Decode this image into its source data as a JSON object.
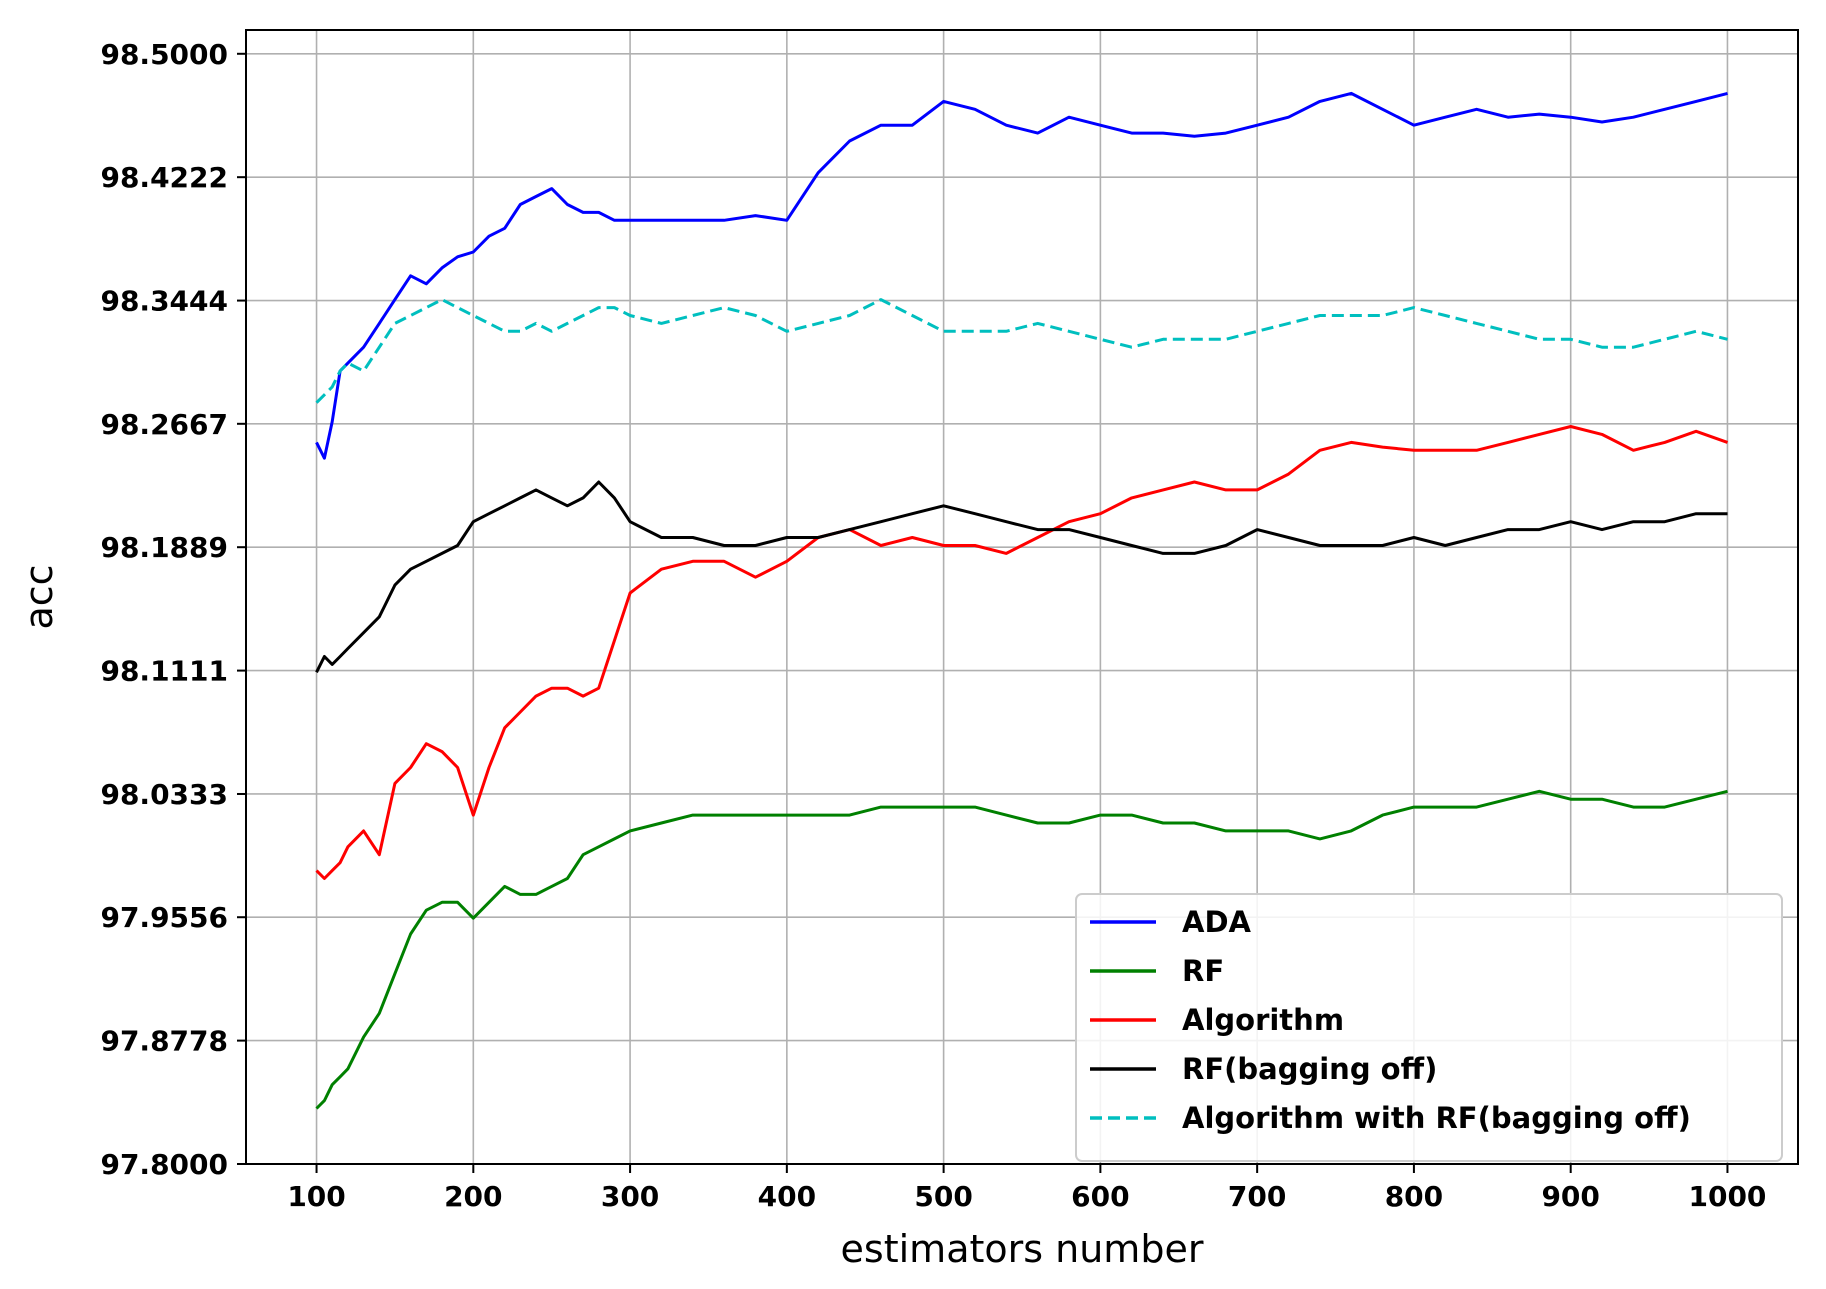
{
  "chart_data": {
    "type": "line",
    "title": "",
    "xlabel": "estimators number",
    "ylabel": "acc",
    "xlim": [
      55,
      1045
    ],
    "ylim": [
      97.8,
      98.515
    ],
    "xticks": [
      100,
      200,
      300,
      400,
      500,
      600,
      700,
      800,
      900,
      1000
    ],
    "xtick_labels": [
      "100",
      "200",
      "300",
      "400",
      "500",
      "600",
      "700",
      "800",
      "900",
      "1000"
    ],
    "yticks": [
      97.8,
      97.8778,
      97.9556,
      98.0333,
      98.1111,
      98.1889,
      98.2667,
      98.3444,
      98.4222,
      98.5
    ],
    "ytick_labels": [
      "97.8000",
      "97.8778",
      "97.9556",
      "98.0333",
      "98.1111",
      "98.1889",
      "98.2667",
      "98.3444",
      "98.4222",
      "98.5000"
    ],
    "grid": true,
    "legend_position": "lower-right",
    "x": [
      100,
      105,
      110,
      115,
      120,
      130,
      140,
      150,
      160,
      170,
      180,
      190,
      200,
      210,
      220,
      230,
      240,
      250,
      260,
      270,
      280,
      290,
      300,
      320,
      340,
      360,
      380,
      400,
      420,
      440,
      460,
      480,
      500,
      520,
      540,
      560,
      580,
      600,
      620,
      640,
      660,
      680,
      700,
      720,
      740,
      760,
      780,
      800,
      820,
      840,
      860,
      880,
      900,
      920,
      940,
      960,
      980,
      1000
    ],
    "series": [
      {
        "name": "ADA",
        "color": "#0000ff",
        "dash": "solid",
        "values": [
          98.255,
          98.245,
          98.268,
          98.3,
          98.305,
          98.315,
          98.33,
          98.345,
          98.36,
          98.355,
          98.365,
          98.372,
          98.375,
          98.385,
          98.39,
          98.405,
          98.41,
          98.415,
          98.405,
          98.4,
          98.4,
          98.395,
          98.395,
          98.395,
          98.395,
          98.395,
          98.398,
          98.395,
          98.425,
          98.445,
          98.455,
          98.455,
          98.47,
          98.465,
          98.455,
          98.45,
          98.46,
          98.455,
          98.45,
          98.45,
          98.448,
          98.45,
          98.455,
          98.46,
          98.47,
          98.475,
          98.465,
          98.455,
          98.46,
          98.465,
          98.46,
          98.462,
          98.46,
          98.457,
          98.46,
          98.465,
          98.47,
          98.475
        ]
      },
      {
        "name": "RF",
        "color": "#008000",
        "dash": "solid",
        "values": [
          97.835,
          97.84,
          97.85,
          97.855,
          97.86,
          97.88,
          97.895,
          97.92,
          97.945,
          97.96,
          97.965,
          97.965,
          97.955,
          97.965,
          97.975,
          97.97,
          97.97,
          97.975,
          97.98,
          97.995,
          98.0,
          98.005,
          98.01,
          98.015,
          98.02,
          98.02,
          98.02,
          98.02,
          98.02,
          98.02,
          98.025,
          98.025,
          98.025,
          98.025,
          98.02,
          98.015,
          98.015,
          98.02,
          98.02,
          98.015,
          98.015,
          98.01,
          98.01,
          98.01,
          98.005,
          98.01,
          98.02,
          98.025,
          98.025,
          98.025,
          98.03,
          98.035,
          98.03,
          98.03,
          98.025,
          98.025,
          98.03,
          98.035
        ]
      },
      {
        "name": "Algorithm",
        "color": "#ff0000",
        "dash": "solid",
        "values": [
          97.985,
          97.98,
          97.985,
          97.99,
          98.0,
          98.01,
          97.995,
          98.04,
          98.05,
          98.065,
          98.06,
          98.05,
          98.02,
          98.05,
          98.075,
          98.085,
          98.095,
          98.1,
          98.1,
          98.095,
          98.1,
          98.13,
          98.16,
          98.175,
          98.18,
          98.18,
          98.17,
          98.18,
          98.195,
          98.2,
          98.19,
          98.195,
          98.19,
          98.19,
          98.185,
          98.195,
          98.205,
          98.21,
          98.22,
          98.225,
          98.23,
          98.225,
          98.225,
          98.235,
          98.25,
          98.255,
          98.252,
          98.25,
          98.25,
          98.25,
          98.255,
          98.26,
          98.265,
          98.26,
          98.25,
          98.255,
          98.262,
          98.255
        ]
      },
      {
        "name": "RF(bagging off)",
        "color": "#000000",
        "dash": "solid",
        "values": [
          98.11,
          98.12,
          98.115,
          98.12,
          98.125,
          98.135,
          98.145,
          98.165,
          98.175,
          98.18,
          98.185,
          98.19,
          98.205,
          98.21,
          98.215,
          98.22,
          98.225,
          98.22,
          98.215,
          98.22,
          98.23,
          98.22,
          98.205,
          98.195,
          98.195,
          98.19,
          98.19,
          98.195,
          98.195,
          98.2,
          98.205,
          98.21,
          98.215,
          98.21,
          98.205,
          98.2,
          98.2,
          98.195,
          98.19,
          98.185,
          98.185,
          98.19,
          98.2,
          98.195,
          98.19,
          98.19,
          98.19,
          98.195,
          98.19,
          98.195,
          98.2,
          98.2,
          98.205,
          98.2,
          98.205,
          98.205,
          98.21,
          98.21
        ]
      },
      {
        "name": "Algorithm with RF(bagging off)",
        "color": "#00bfbf",
        "dash": "dashed",
        "values": [
          98.28,
          98.285,
          98.29,
          98.3,
          98.305,
          98.3,
          98.315,
          98.33,
          98.335,
          98.34,
          98.345,
          98.34,
          98.335,
          98.33,
          98.325,
          98.325,
          98.33,
          98.325,
          98.33,
          98.335,
          98.34,
          98.34,
          98.335,
          98.33,
          98.335,
          98.34,
          98.335,
          98.325,
          98.33,
          98.335,
          98.345,
          98.335,
          98.325,
          98.325,
          98.325,
          98.33,
          98.325,
          98.32,
          98.315,
          98.32,
          98.32,
          98.32,
          98.325,
          98.33,
          98.335,
          98.335,
          98.335,
          98.34,
          98.335,
          98.33,
          98.325,
          98.32,
          98.32,
          98.315,
          98.315,
          98.32,
          98.325,
          98.32
        ]
      }
    ]
  }
}
